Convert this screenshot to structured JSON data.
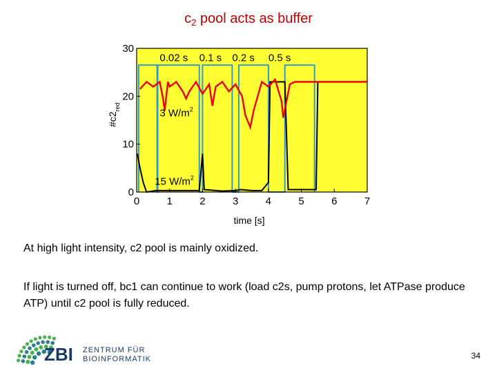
{
  "slide": {
    "title_main": "c",
    "title_sub": "2",
    "title_rest": " pool acts as buffer",
    "paragraph1": "At high light intensity, c2 pool is mainly oxidized.",
    "paragraph2": "If light is turned off, bc1 can continue to work (load c2s, pump protons, let ATPase produce ATP) until c2 pool is fully reduced.",
    "page_number": "34"
  },
  "logo": {
    "abbr": "ZBI",
    "line1": "ZENTRUM FÜR",
    "line2": "BIOINFORMATIK",
    "color_dots": "#4caf50",
    "color_text": "#1a3a6b"
  },
  "chart_data": {
    "type": "line",
    "xlabel": "time [s]",
    "ylabel_main": "#c2",
    "ylabel_sub": "red",
    "xlim": [
      0,
      7
    ],
    "ylim": [
      0,
      30
    ],
    "xticks": [
      "0",
      "1",
      "2",
      "3",
      "4",
      "5",
      "6",
      "7"
    ],
    "yticks": [
      "0",
      "10",
      "20",
      "30"
    ],
    "background": "#ffff33",
    "annotations": [
      {
        "text": "0.02 s",
        "x": 0.7,
        "y": 27.3
      },
      {
        "text": "0.1 s",
        "x": 1.9,
        "y": 27.3
      },
      {
        "text": "0.2 s",
        "x": 2.9,
        "y": 27.3
      },
      {
        "text": "0.5 s",
        "x": 4.0,
        "y": 27.3
      },
      {
        "text": "3 W/m",
        "sup": "2",
        "x": 0.7,
        "y": 15.8
      },
      {
        "text": "15 W/m",
        "sup": "2",
        "x": 0.55,
        "y": 1.5
      }
    ],
    "series": [
      {
        "color": "#3399cc",
        "x": [
          0.06,
          0.06,
          0.62,
          0.62,
          0.64,
          0.64,
          1.9,
          1.9,
          2.0,
          2.0,
          2.9,
          2.9,
          3.1,
          3.1,
          4.0,
          4.0,
          4.5,
          4.5,
          5.4,
          5.4
        ],
        "y": [
          0,
          26.5,
          26.5,
          0,
          0,
          26.5,
          26.5,
          0,
          0,
          26.5,
          26.5,
          0,
          0,
          26.5,
          26.5,
          0,
          0,
          26.5,
          26.5,
          0
        ]
      },
      {
        "color": "#000000",
        "x": [
          0.02,
          0.1,
          0.2,
          0.3,
          0.6,
          1.0,
          1.9,
          2.0,
          2.05,
          2.6,
          3.0,
          3.15,
          3.5,
          3.8,
          4.0,
          4.05,
          4.5,
          4.6,
          5.45,
          5.5,
          5.7
        ],
        "y": [
          8,
          5,
          2,
          0,
          0.3,
          0.3,
          0.3,
          8,
          0.5,
          0.2,
          0.3,
          0.5,
          0.3,
          0.3,
          2,
          23,
          23,
          0.5,
          0.5,
          23,
          23
        ]
      },
      {
        "color": "#ee0000",
        "x": [
          0.1,
          0.3,
          0.5,
          0.7,
          0.8,
          0.85,
          0.9,
          0.95,
          1.0,
          1.2,
          1.4,
          1.5,
          1.6,
          1.8,
          2.0,
          2.2,
          2.3,
          2.4,
          2.6,
          2.8,
          3.0,
          3.2,
          3.3,
          3.45,
          3.55,
          3.8,
          4.0,
          4.2,
          4.4,
          4.45,
          4.55,
          4.65,
          4.8,
          5.0,
          5.5,
          7.0
        ],
        "y": [
          21.5,
          23,
          22,
          23,
          19.5,
          17,
          20,
          23,
          22,
          23,
          21,
          19.5,
          21,
          23,
          20.5,
          22.5,
          18,
          22,
          23,
          21,
          22.5,
          20,
          16,
          13.5,
          17,
          23,
          22,
          23.5,
          19,
          15.5,
          19,
          22.5,
          23,
          23,
          23,
          23
        ]
      }
    ]
  }
}
